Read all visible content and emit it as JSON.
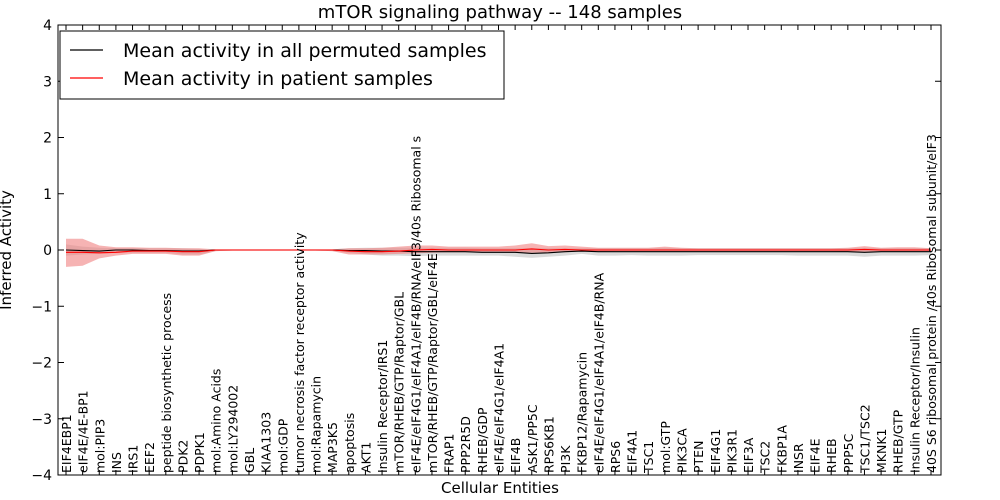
{
  "chart_data": {
    "type": "line",
    "title": "mTOR signaling pathway -- 148 samples",
    "xlabel": "Cellular Entities",
    "ylabel": "Inferred Activity",
    "ylim": [
      -4,
      4
    ],
    "yticks": [
      "−4",
      "−3",
      "−2",
      "−1",
      "0",
      "1",
      "2",
      "3",
      "4"
    ],
    "ytick_values": [
      -4,
      -3,
      -2,
      -1,
      0,
      1,
      2,
      3,
      4
    ],
    "legend_position": "top-left",
    "colors": {
      "permuted": "#000000",
      "patient": "#ff0000",
      "patient_band": "#f08080",
      "permuted_band": "#bbbbbb"
    },
    "categories": [
      "EIF4EBP1",
      "eIF4E/4E-BP1",
      "mol:PIP3",
      "INS",
      "IRS1",
      "EEF2",
      "peptide biosynthetic process",
      "PDK2",
      "PDPK1",
      "mol:Amino Acids",
      "mol:LY294002",
      "GBL",
      "KIAA1303",
      "mol:GDP",
      "tumor necrosis factor receptor activity",
      "mol:Rapamycin",
      "MAP3K5",
      "apoptosis",
      "AKT1",
      "Insulin Receptor/IRS1",
      "mTOR/RHEB/GTP/Raptor/GBL",
      "eIF4E/eIF4G1/eIF4A1/eIF4B/RNA/eIF3/40s Ribosomal s",
      "mTOR/RHEB/GTP/Raptor/GBL/eIF4E",
      "FRAP1",
      "PPP2R5D",
      "RHEB/GDP",
      "eIF4E/eIF4G1/eIF4A1",
      "EIF4B",
      "ASK1/PP5C",
      "RPS6KB1",
      "PI3K",
      "FKBP12/Rapamycin",
      "eIF4E/eIF4G1/eIF4A1/eIF4B/RNA",
      "RPS6",
      "EIF4A1",
      "TSC1",
      "mol:GTP",
      "PIK3CA",
      "PTEN",
      "EIF4G1",
      "PIK3R1",
      "EIF3A",
      "TSC2",
      "FKBP1A",
      "INSR",
      "EIF4E",
      "RHEB",
      "PPP5C",
      "TSC1/TSC2",
      "MKNK1",
      "RHEB/GTP",
      "Insulin Receptor/Insulin",
      "40S S6 ribosomal protein /40s Ribosomal subunit/eIF3"
    ],
    "series": [
      {
        "name": "Mean activity in all permuted samples",
        "values": [
          0,
          -0.01,
          -0.02,
          0,
          0,
          -0.01,
          -0.01,
          -0.02,
          -0.02,
          0,
          0,
          0,
          0,
          0,
          0,
          0,
          0,
          -0.01,
          -0.01,
          -0.02,
          -0.02,
          -0.03,
          -0.03,
          -0.03,
          -0.03,
          -0.04,
          -0.04,
          -0.04,
          -0.06,
          -0.05,
          -0.03,
          -0.02,
          -0.03,
          -0.03,
          -0.03,
          -0.03,
          -0.03,
          -0.03,
          -0.03,
          -0.03,
          -0.03,
          -0.03,
          -0.03,
          -0.03,
          -0.03,
          -0.03,
          -0.03,
          -0.03,
          -0.04,
          -0.03,
          -0.03,
          -0.03,
          -0.03
        ],
        "lower": [
          -0.1,
          -0.08,
          -0.07,
          -0.05,
          -0.05,
          -0.05,
          -0.05,
          -0.08,
          -0.08,
          -0.02,
          -0.01,
          -0.01,
          -0.01,
          -0.01,
          -0.01,
          -0.01,
          -0.02,
          -0.05,
          -0.08,
          -0.1,
          -0.1,
          -0.11,
          -0.1,
          -0.1,
          -0.1,
          -0.1,
          -0.1,
          -0.12,
          -0.14,
          -0.12,
          -0.1,
          -0.07,
          -0.1,
          -0.1,
          -0.09,
          -0.1,
          -0.1,
          -0.1,
          -0.09,
          -0.09,
          -0.09,
          -0.09,
          -0.09,
          -0.09,
          -0.1,
          -0.1,
          -0.1,
          -0.1,
          -0.12,
          -0.1,
          -0.1,
          -0.1,
          -0.09
        ],
        "upper": [
          0.1,
          0.06,
          0.04,
          0.03,
          0.03,
          0.03,
          0.03,
          0.03,
          0.02,
          0.01,
          0.01,
          0.01,
          0.01,
          0.01,
          0.01,
          0.01,
          0.01,
          0.03,
          0.04,
          0.04,
          0.04,
          0.04,
          0.04,
          0.04,
          0.04,
          0.03,
          0.03,
          0.03,
          0.03,
          0.03,
          0.03,
          0.03,
          0.03,
          0.03,
          0.03,
          0.03,
          0.04,
          0.03,
          0.03,
          0.03,
          0.03,
          0.03,
          0.03,
          0.03,
          0.03,
          0.03,
          0.03,
          0.03,
          0.04,
          0.03,
          0.03,
          0.03,
          0.03
        ]
      },
      {
        "name": "Mean activity in patient samples",
        "values": [
          -0.04,
          -0.04,
          -0.05,
          -0.04,
          -0.02,
          -0.02,
          -0.02,
          -0.03,
          -0.03,
          0,
          0,
          0,
          0,
          0,
          0,
          0,
          0,
          -0.02,
          -0.03,
          -0.03,
          -0.02,
          0,
          0.01,
          0,
          0,
          0,
          0,
          0,
          0.02,
          0,
          0.01,
          0,
          0,
          0,
          0,
          0,
          0,
          0,
          0,
          0,
          0,
          0,
          0,
          0,
          0,
          0,
          0,
          0,
          0.01,
          0,
          0,
          0,
          0
        ],
        "lower": [
          -0.3,
          -0.28,
          -0.15,
          -0.1,
          -0.07,
          -0.07,
          -0.07,
          -0.1,
          -0.1,
          -0.02,
          -0.01,
          -0.01,
          -0.01,
          -0.01,
          -0.01,
          -0.01,
          -0.02,
          -0.08,
          -0.08,
          -0.08,
          -0.07,
          -0.06,
          -0.05,
          -0.04,
          -0.04,
          -0.04,
          -0.04,
          -0.05,
          -0.05,
          -0.05,
          -0.04,
          -0.02,
          -0.03,
          -0.02,
          -0.02,
          -0.02,
          -0.02,
          -0.02,
          -0.02,
          -0.02,
          -0.02,
          -0.02,
          -0.02,
          -0.02,
          -0.02,
          -0.02,
          -0.02,
          -0.03,
          -0.03,
          -0.02,
          -0.02,
          -0.02,
          -0.02
        ],
        "upper": [
          0.2,
          0.2,
          0.08,
          0.05,
          0.05,
          0.04,
          0.04,
          0.03,
          0.03,
          0.01,
          0.01,
          0.01,
          0.01,
          0.01,
          0.01,
          0.01,
          0.01,
          0.03,
          0.03,
          0.04,
          0.06,
          0.08,
          0.08,
          0.06,
          0.06,
          0.06,
          0.06,
          0.08,
          0.12,
          0.07,
          0.08,
          0.06,
          0.04,
          0.04,
          0.04,
          0.04,
          0.06,
          0.04,
          0.03,
          0.03,
          0.03,
          0.03,
          0.03,
          0.03,
          0.03,
          0.03,
          0.03,
          0.04,
          0.07,
          0.04,
          0.05,
          0.05,
          0.03
        ]
      }
    ]
  }
}
